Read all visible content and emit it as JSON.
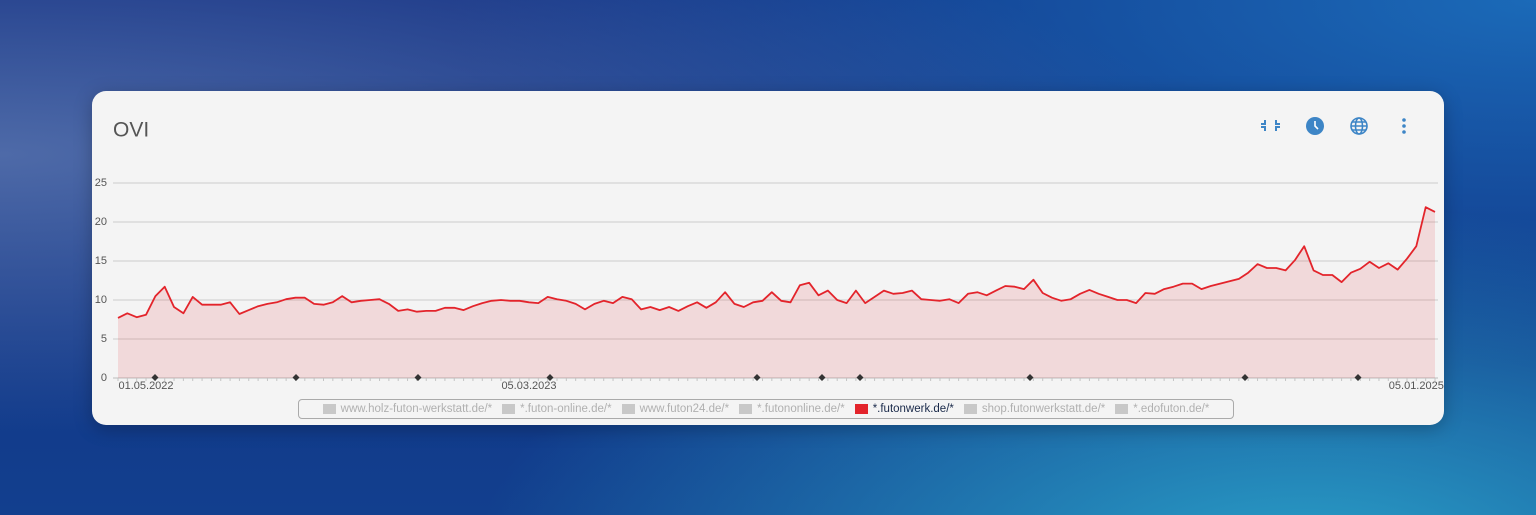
{
  "chart_data": {
    "type": "line",
    "title": "OVI",
    "categories": [
      null,
      null,
      null,
      "01.05.2022",
      null,
      null,
      null,
      null,
      null,
      null,
      null,
      null,
      null,
      null,
      null,
      null,
      null,
      null,
      null,
      null,
      null,
      null,
      null,
      null,
      null,
      null,
      null,
      null,
      null,
      null,
      null,
      null,
      null,
      null,
      null,
      null,
      null,
      null,
      null,
      null,
      null,
      null,
      null,
      null,
      "05.03.2023",
      null,
      null,
      null,
      null,
      null,
      null,
      null,
      null,
      null,
      null,
      null,
      null,
      null,
      null,
      null,
      null,
      null,
      null,
      null,
      null,
      null,
      null,
      null,
      null,
      null,
      null,
      null,
      null,
      null,
      null,
      null,
      null,
      null,
      null,
      null,
      null,
      null,
      null,
      null,
      null,
      null,
      null,
      null,
      null,
      null,
      null,
      null,
      null,
      null,
      null,
      null,
      null,
      null,
      null,
      null,
      null,
      null,
      null,
      null,
      null,
      null,
      null,
      null,
      null,
      null,
      null,
      null,
      null,
      null,
      null,
      null,
      null,
      null,
      null,
      null,
      null,
      null,
      null,
      null,
      null,
      null,
      null,
      null,
      null,
      null,
      null,
      null,
      null,
      null,
      null,
      null,
      null,
      null,
      null,
      "05.01.2025",
      null,
      null
    ],
    "series": [
      {
        "name": "www.holz-futon-werkstatt.de/*",
        "color": "#c8c8c8",
        "visible": false
      },
      {
        "name": "*.futon-online.de/*",
        "color": "#c8c8c8",
        "visible": false
      },
      {
        "name": "www.futon24.de/*",
        "color": "#c8c8c8",
        "visible": false
      },
      {
        "name": "*.futononline.de/*",
        "color": "#c8c8c8",
        "visible": false
      },
      {
        "name": "*.futonwerk.de/*",
        "color": "#e3242b",
        "visible": true,
        "values": [
          7.7,
          8.3,
          7.8,
          8.1,
          10.5,
          11.7,
          9.1,
          8.3,
          10.4,
          9.4,
          9.4,
          9.4,
          9.7,
          8.2,
          8.7,
          9.2,
          9.5,
          9.7,
          10.1,
          10.3,
          10.3,
          9.5,
          9.4,
          9.7,
          10.5,
          9.7,
          9.9,
          10.0,
          10.1,
          9.5,
          8.6,
          8.8,
          8.5,
          8.6,
          8.6,
          9.0,
          9.0,
          8.7,
          9.2,
          9.6,
          9.9,
          10.0,
          9.9,
          9.9,
          9.7,
          9.6,
          10.4,
          10.1,
          9.9,
          9.5,
          8.8,
          9.5,
          9.9,
          9.6,
          10.4,
          10.1,
          8.8,
          9.1,
          8.7,
          9.1,
          8.6,
          9.2,
          9.7,
          9.0,
          9.7,
          11.0,
          9.5,
          9.1,
          9.7,
          9.9,
          11.0,
          9.9,
          9.7,
          11.9,
          12.2,
          10.6,
          11.2,
          10.0,
          9.6,
          11.2,
          9.6,
          10.4,
          11.2,
          10.8,
          10.9,
          11.2,
          10.1,
          10.0,
          9.9,
          10.1,
          9.6,
          10.8,
          11.0,
          10.6,
          11.2,
          11.8,
          11.7,
          11.4,
          12.6,
          10.9,
          10.3,
          9.9,
          10.1,
          10.8,
          11.3,
          10.8,
          10.4,
          10.0,
          10.0,
          9.6,
          10.9,
          10.8,
          11.4,
          11.7,
          12.1,
          12.1,
          11.4,
          11.8,
          12.1,
          12.4,
          12.7,
          13.5,
          14.6,
          14.1,
          14.1,
          13.8,
          15.1,
          16.9,
          13.8,
          13.2,
          13.2,
          12.3,
          13.5,
          14.0,
          14.9,
          14.1,
          14.7,
          13.9,
          15.3,
          16.9,
          21.9,
          21.3
        ]
      },
      {
        "name": "shop.futonwerkstatt.de/*",
        "color": "#c8c8c8",
        "visible": false
      },
      {
        "name": "*.edofuton.de/*",
        "color": "#c8c8c8",
        "visible": false
      }
    ],
    "ylim": [
      0,
      25
    ],
    "yticks": [
      0,
      5,
      10,
      15,
      20,
      25
    ],
    "grid": true
  }
}
